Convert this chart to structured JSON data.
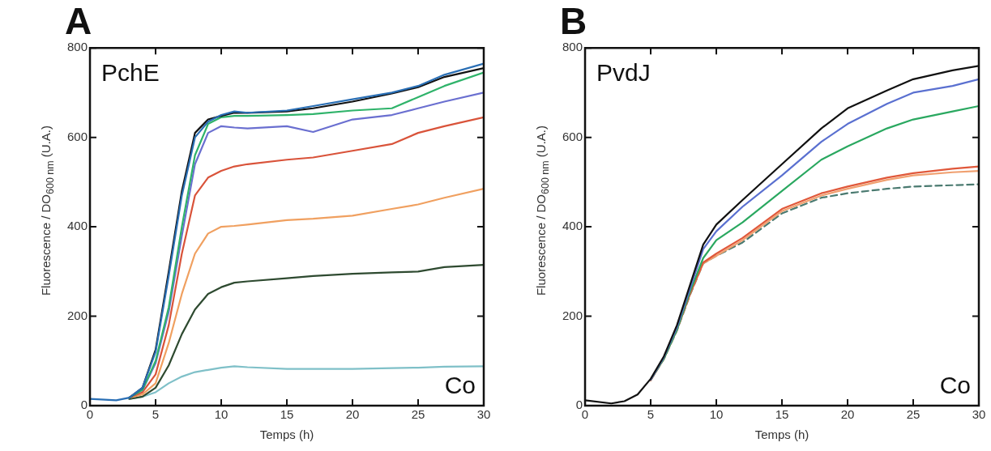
{
  "chart_data": [
    {
      "type": "line",
      "title": "A",
      "xlabel": "Temps (h)",
      "ylabel": "Fluorescence / DO$_{600 nm}$ (U.A.)",
      "annotations": [
        "PchE",
        "Co"
      ],
      "xlim": [
        0,
        30
      ],
      "xticks": [
        0,
        5,
        10,
        15,
        20,
        25,
        30
      ],
      "ylim": [
        0,
        800
      ],
      "yticks": [
        0,
        200,
        400,
        600,
        800
      ],
      "marker": "none",
      "x": [
        0,
        2,
        3,
        4,
        5,
        6,
        7,
        8,
        9,
        10,
        11,
        12,
        15,
        17,
        20,
        23,
        25,
        27,
        30
      ],
      "series": [
        {
          "color": "#2a6fb5",
          "values": [
            15,
            12,
            18,
            40,
            120,
            290,
            470,
            600,
            635,
            650,
            658,
            655,
            660,
            670,
            685,
            700,
            715,
            740,
            765
          ]
        },
        {
          "color": "#111111",
          "values": [
            null,
            null,
            18,
            40,
            125,
            300,
            480,
            610,
            640,
            648,
            655,
            655,
            658,
            665,
            680,
            698,
            712,
            735,
            755
          ]
        },
        {
          "color": "#2fb36a",
          "values": [
            null,
            null,
            18,
            35,
            100,
            220,
            400,
            560,
            630,
            645,
            648,
            648,
            650,
            652,
            660,
            665,
            690,
            715,
            745
          ]
        },
        {
          "color": "#6a6fd0",
          "values": [
            null,
            null,
            18,
            35,
            95,
            210,
            380,
            540,
            610,
            625,
            622,
            620,
            625,
            612,
            640,
            650,
            665,
            680,
            700
          ]
        },
        {
          "color": "#d9533a",
          "values": [
            null,
            null,
            18,
            30,
            70,
            180,
            340,
            470,
            510,
            525,
            535,
            540,
            550,
            555,
            570,
            585,
            610,
            625,
            645
          ]
        },
        {
          "color": "#f0a060",
          "values": [
            null,
            null,
            18,
            25,
            50,
            140,
            250,
            340,
            385,
            400,
            402,
            405,
            415,
            418,
            425,
            440,
            450,
            465,
            485
          ]
        },
        {
          "color": "#2e4a30",
          "values": [
            null,
            null,
            15,
            20,
            40,
            90,
            160,
            215,
            250,
            265,
            275,
            278,
            285,
            290,
            295,
            298,
            300,
            310,
            315
          ]
        },
        {
          "color": "#7fc0c8",
          "values": [
            null,
            null,
            15,
            20,
            30,
            50,
            65,
            75,
            80,
            85,
            88,
            86,
            82,
            82,
            82,
            84,
            85,
            87,
            88
          ]
        }
      ]
    },
    {
      "type": "line",
      "title": "B",
      "xlabel": "Temps (h)",
      "ylabel": "Fluorescence / DO$_{600 nm}$ (U.A.)",
      "annotations": [
        "PvdJ",
        "Co"
      ],
      "xlim": [
        0,
        30
      ],
      "xticks": [
        0,
        5,
        10,
        15,
        20,
        25,
        30
      ],
      "ylim": [
        0,
        800
      ],
      "yticks": [
        0,
        200,
        400,
        600,
        800
      ],
      "marker": "none",
      "x": [
        0,
        2,
        3,
        4,
        5,
        6,
        7,
        8,
        9,
        10,
        12,
        15,
        18,
        20,
        23,
        25,
        28,
        30
      ],
      "series": [
        {
          "color": "#111111",
          "values": [
            12,
            5,
            10,
            25,
            60,
            110,
            180,
            270,
            360,
            405,
            460,
            540,
            620,
            665,
            705,
            730,
            750,
            760
          ]
        },
        {
          "color": "#5a70d0",
          "values": [
            null,
            null,
            null,
            null,
            58,
            108,
            175,
            262,
            350,
            390,
            445,
            515,
            590,
            630,
            675,
            700,
            715,
            730
          ]
        },
        {
          "color": "#2aa860",
          "values": [
            null,
            null,
            null,
            null,
            58,
            105,
            170,
            255,
            330,
            370,
            410,
            480,
            550,
            580,
            620,
            640,
            658,
            670
          ]
        },
        {
          "color": "#e0583a",
          "values": [
            null,
            null,
            null,
            null,
            57,
            105,
            170,
            250,
            320,
            340,
            375,
            440,
            475,
            490,
            510,
            520,
            530,
            535
          ]
        },
        {
          "color": "#f0a070",
          "values": [
            null,
            null,
            null,
            null,
            57,
            105,
            170,
            250,
            318,
            335,
            370,
            435,
            470,
            485,
            505,
            515,
            522,
            525
          ]
        },
        {
          "color": "#4a7a70",
          "line_style": "dashed",
          "values": [
            null,
            null,
            null,
            null,
            57,
            104,
            168,
            248,
            318,
            335,
            365,
            430,
            465,
            475,
            485,
            490,
            493,
            495
          ]
        }
      ]
    }
  ]
}
